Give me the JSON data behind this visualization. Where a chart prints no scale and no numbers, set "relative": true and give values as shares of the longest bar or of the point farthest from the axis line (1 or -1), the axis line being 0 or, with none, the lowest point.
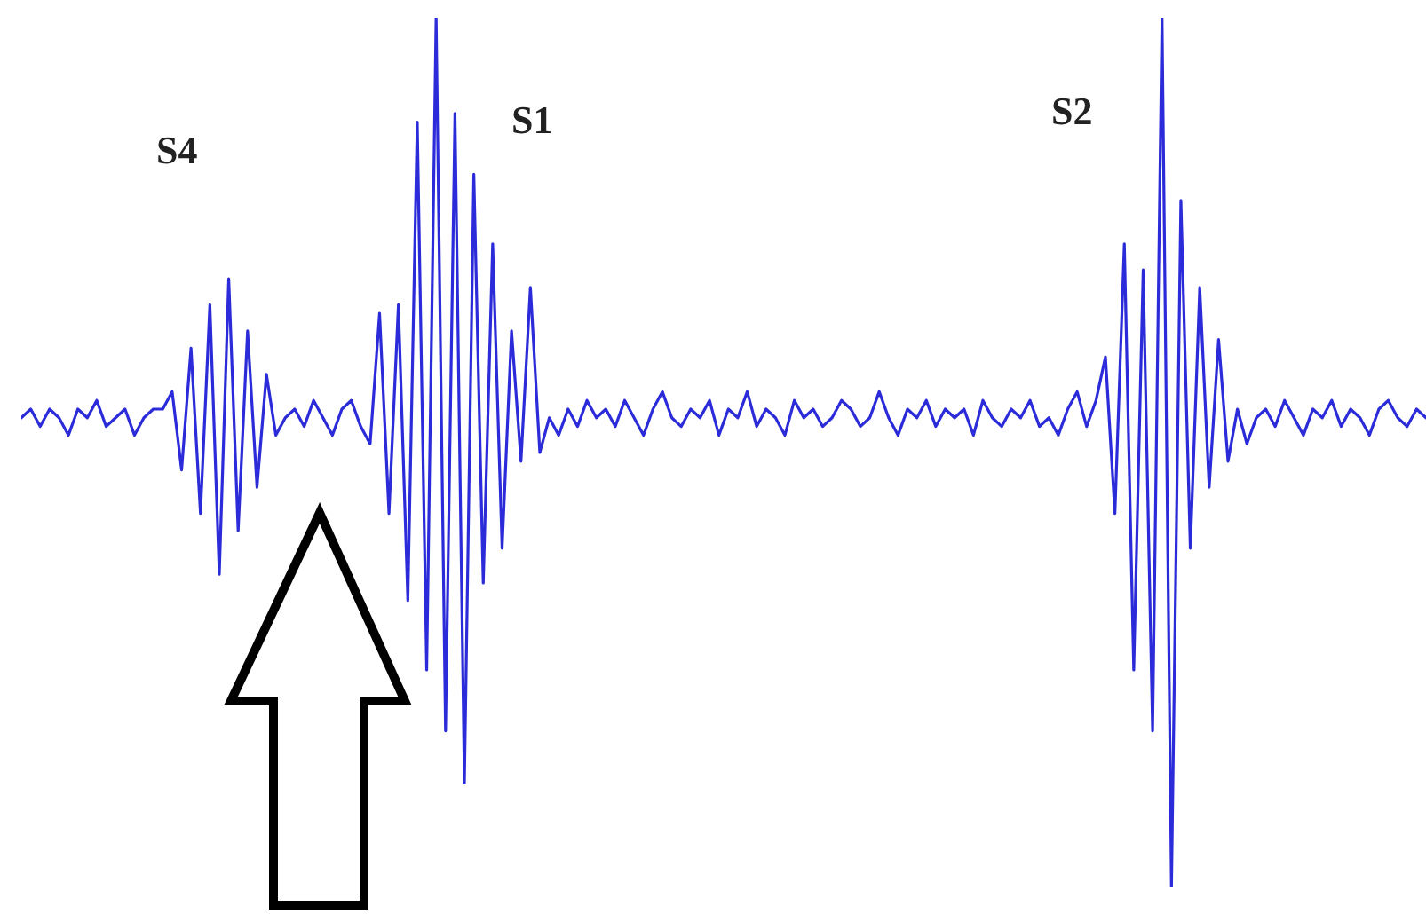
{
  "chart_data": {
    "type": "line",
    "relative": true,
    "categories": [
      null,
      null,
      null,
      null,
      null,
      null,
      null,
      null,
      null,
      null,
      null,
      null,
      null,
      null,
      null,
      null,
      null,
      null,
      null,
      null,
      null,
      null,
      null,
      null,
      null,
      null,
      null,
      null,
      null,
      null,
      null,
      null,
      null,
      null,
      null,
      null,
      null,
      null,
      null,
      null,
      null,
      null,
      null,
      null,
      null,
      null,
      null,
      null,
      null,
      null,
      null,
      null,
      null,
      null,
      null,
      null,
      null,
      null,
      null,
      null,
      null,
      null,
      null,
      null,
      null,
      null,
      null,
      null,
      null,
      null,
      null,
      null,
      null,
      null,
      null,
      null,
      null,
      null,
      null,
      null,
      null,
      null,
      null,
      null,
      null,
      null,
      null,
      null,
      null,
      null,
      null,
      null,
      null,
      null,
      null,
      null,
      null,
      null,
      null,
      null,
      null,
      null,
      null,
      null,
      null,
      null,
      null,
      null,
      null,
      null,
      null,
      null,
      null,
      null,
      null,
      null,
      null,
      null,
      null,
      null,
      null,
      null,
      null,
      null,
      null,
      null,
      null,
      null,
      null,
      null,
      null,
      null,
      null,
      null,
      null,
      null,
      null,
      null,
      null,
      null,
      null,
      null,
      null,
      null,
      null,
      null,
      null,
      null,
      null,
      null
    ],
    "series": [
      {
        "color": "#2b2bd9",
        "values": [
          0.54,
          0.55,
          0.53,
          0.55,
          0.54,
          0.52,
          0.55,
          0.54,
          0.56,
          0.53,
          0.54,
          0.55,
          0.52,
          0.54,
          0.55,
          0.55,
          0.57,
          0.48,
          0.62,
          0.43,
          0.67,
          0.36,
          0.7,
          0.41,
          0.64,
          0.46,
          0.59,
          0.52,
          0.54,
          0.55,
          0.53,
          0.56,
          0.54,
          0.52,
          0.55,
          0.56,
          0.53,
          0.51,
          0.66,
          0.43,
          0.67,
          0.33,
          0.88,
          0.25,
          1.0,
          0.18,
          0.89,
          0.12,
          0.82,
          0.35,
          0.74,
          0.39,
          0.64,
          0.49,
          0.69,
          0.5,
          0.54,
          0.52,
          0.55,
          0.53,
          0.56,
          0.54,
          0.55,
          0.53,
          0.56,
          0.54,
          0.52,
          0.55,
          0.57,
          0.54,
          0.53,
          0.55,
          0.54,
          0.56,
          0.52,
          0.55,
          0.54,
          0.57,
          0.53,
          0.55,
          0.54,
          0.52,
          0.56,
          0.54,
          0.55,
          0.53,
          0.54,
          0.56,
          0.55,
          0.53,
          0.54,
          0.57,
          0.54,
          0.52,
          0.55,
          0.54,
          0.56,
          0.53,
          0.55,
          0.54,
          0.55,
          0.52,
          0.56,
          0.54,
          0.53,
          0.55,
          0.54,
          0.56,
          0.53,
          0.54,
          0.52,
          0.55,
          0.57,
          0.53,
          0.56,
          0.61,
          0.43,
          0.74,
          0.25,
          0.71,
          0.18,
          1.0,
          0.0,
          0.79,
          0.39,
          0.69,
          0.46,
          0.63,
          0.49,
          0.55,
          0.51,
          0.54,
          0.55,
          0.53,
          0.56,
          0.54,
          0.52,
          0.55,
          0.54,
          0.56,
          0.53,
          0.55,
          0.54,
          0.52,
          0.55,
          0.56,
          0.54,
          0.53,
          0.55,
          0.54
        ]
      }
    ],
    "annotations": [
      "S4",
      "S1",
      "S2"
    ]
  }
}
